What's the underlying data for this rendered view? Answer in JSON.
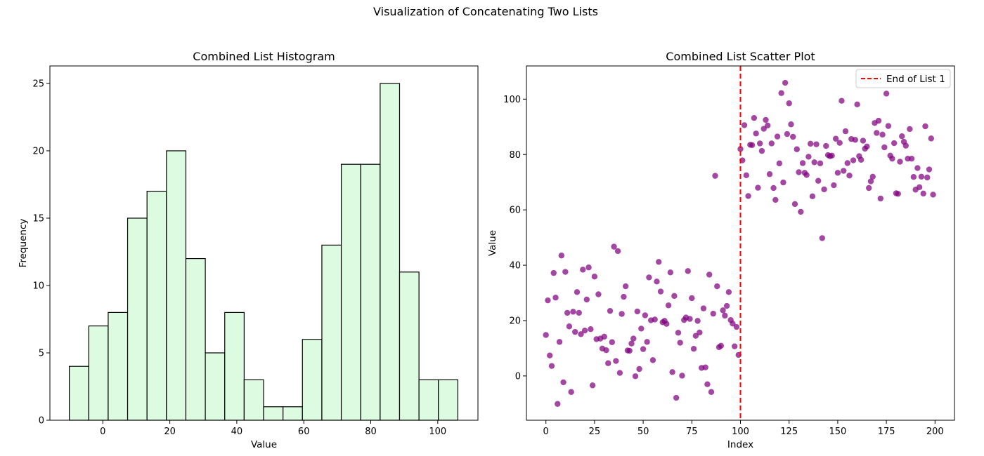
{
  "suptitle": "Visualization of Concatenating Two Lists",
  "chart_data": [
    {
      "type": "bar",
      "title": "Combined List Histogram",
      "xlabel": "Value",
      "ylabel": "Frequency",
      "xlim": [
        -15.8,
        112
      ],
      "ylim": [
        0,
        26.3
      ],
      "xticks": [
        0,
        20,
        40,
        60,
        80,
        100
      ],
      "yticks": [
        0,
        5,
        10,
        15,
        20,
        25
      ],
      "bin_edges": [
        -10.0,
        -4.2,
        1.6,
        7.4,
        13.2,
        19.0,
        24.8,
        30.6,
        36.4,
        42.2,
        48.0,
        53.8,
        59.6,
        65.4,
        71.2,
        77.0,
        82.8,
        88.6,
        94.4,
        100.2,
        106.0
      ],
      "values": [
        4,
        7,
        8,
        15,
        17,
        20,
        12,
        5,
        8,
        3,
        1,
        1,
        6,
        13,
        19,
        19,
        25,
        11,
        3,
        3
      ],
      "bar_color": "#ddfbe0",
      "edge_color": "#000000",
      "grid": false
    },
    {
      "type": "scatter",
      "title": "Combined List Scatter Plot",
      "xlabel": "Index",
      "ylabel": "Value",
      "xlim": [
        -10,
        210
      ],
      "ylim": [
        -16,
        112
      ],
      "xticks": [
        0,
        25,
        50,
        75,
        100,
        125,
        150,
        175,
        200
      ],
      "yticks": [
        0,
        20,
        40,
        60,
        80,
        100
      ],
      "point_color": "#800080",
      "legend_position": "top-right",
      "vline": {
        "x": 100,
        "label": "End of List 1",
        "color": "#ff0000",
        "style": "dashed"
      },
      "grid": false,
      "x": [
        0,
        1,
        2,
        3,
        4,
        5,
        6,
        7,
        8,
        9,
        10,
        11,
        12,
        13,
        14,
        15,
        16,
        17,
        18,
        19,
        20,
        21,
        22,
        23,
        24,
        25,
        26,
        27,
        28,
        29,
        30,
        31,
        32,
        33,
        34,
        35,
        36,
        37,
        38,
        39,
        40,
        41,
        42,
        43,
        44,
        45,
        46,
        47,
        48,
        49,
        50,
        51,
        52,
        53,
        54,
        55,
        56,
        57,
        58,
        59,
        60,
        61,
        62,
        63,
        64,
        65,
        66,
        67,
        68,
        69,
        70,
        71,
        72,
        73,
        74,
        75,
        76,
        77,
        78,
        79,
        80,
        81,
        82,
        83,
        84,
        85,
        86,
        87,
        88,
        89,
        90,
        91,
        92,
        93,
        94,
        95,
        96,
        97,
        98,
        99,
        100,
        101,
        102,
        103,
        104,
        105,
        106,
        107,
        108,
        109,
        110,
        111,
        112,
        113,
        114,
        115,
        116,
        117,
        118,
        119,
        120,
        121,
        122,
        123,
        124,
        125,
        126,
        127,
        128,
        129,
        130,
        131,
        132,
        133,
        134,
        135,
        136,
        137,
        138,
        139,
        140,
        141,
        142,
        143,
        144,
        145,
        146,
        147,
        148,
        149,
        150,
        151,
        152,
        153,
        154,
        155,
        156,
        157,
        158,
        159,
        160,
        161,
        162,
        163,
        164,
        165,
        166,
        167,
        168,
        169,
        170,
        171,
        172,
        173,
        174,
        175,
        176,
        177,
        178,
        179,
        180,
        181,
        182,
        183,
        184,
        185,
        186,
        187,
        188,
        189,
        190,
        191,
        192,
        193,
        194,
        195,
        196,
        197,
        198,
        199
      ],
      "y": [
        14.8,
        27.3,
        7.4,
        3.6,
        37.2,
        28.3,
        -10.1,
        12.3,
        43.5,
        -2.3,
        37.6,
        22.8,
        17.9,
        -5.8,
        23.2,
        15.9,
        30.3,
        22.8,
        15.1,
        38.4,
        16.4,
        27.6,
        39.2,
        16.9,
        -3.4,
        35.9,
        13.3,
        29.5,
        13.5,
        9.9,
        14.2,
        9.3,
        4.6,
        23.5,
        12.2,
        46.7,
        5.4,
        45.1,
        1.1,
        22.4,
        28.6,
        32.4,
        9.2,
        9.1,
        11.7,
        13.5,
        -0.1,
        23.3,
        2.5,
        17.1,
        9.7,
        21.9,
        12.3,
        35.6,
        20.1,
        5.7,
        20.4,
        34.1,
        41.2,
        30.5,
        19.4,
        19.9,
        18.8,
        25.5,
        37.4,
        1.4,
        28.9,
        -7.9,
        15.6,
        12.0,
        0.1,
        20.2,
        21.1,
        37.9,
        20.6,
        28.1,
        9.8,
        14.5,
        19.9,
        15.7,
        2.9,
        24.4,
        3.1,
        -3.0,
        36.6,
        -5.8,
        22.5,
        72.3,
        32.4,
        10.4,
        10.9,
        23.7,
        21.8,
        25.3,
        30.3,
        20.2,
        18.9,
        10.7,
        17.7,
        7.6,
        82.0,
        77.9,
        90.6,
        72.5,
        65.0,
        83.5,
        83.4,
        93.2,
        87.6,
        68.0,
        84.0,
        81.3,
        89.3,
        92.5,
        90.5,
        72.9,
        84.0,
        67.9,
        63.6,
        86.5,
        76.8,
        102.2,
        69.9,
        105.9,
        87.4,
        98.5,
        90.9,
        86.4,
        62.1,
        81.9,
        73.6,
        59.3,
        76.9,
        73.4,
        72.6,
        79.2,
        83.9,
        64.9,
        77.2,
        83.7,
        70.5,
        76.8,
        49.8,
        67.4,
        83.1,
        79.8,
        79.4,
        79.6,
        68.9,
        85.7,
        73.4,
        84.2,
        99.4,
        74.1,
        88.4,
        76.9,
        72.4,
        85.6,
        77.9,
        85.3,
        98.1,
        79.4,
        78.1,
        85.0,
        82.1,
        82.9,
        67.9,
        70.3,
        72.0,
        91.4,
        87.8,
        92.2,
        64.1,
        87.2,
        82.6,
        102.0,
        90.3,
        79.6,
        78.5,
        84.1,
        66.0,
        65.8,
        77.4,
        86.6,
        84.6,
        83.2,
        78.5,
        89.2,
        78.5,
        71.9,
        67.3,
        75.1,
        68.2,
        72.0,
        65.9,
        90.2,
        71.7,
        74.6,
        85.8,
        65.5
      ]
    }
  ]
}
